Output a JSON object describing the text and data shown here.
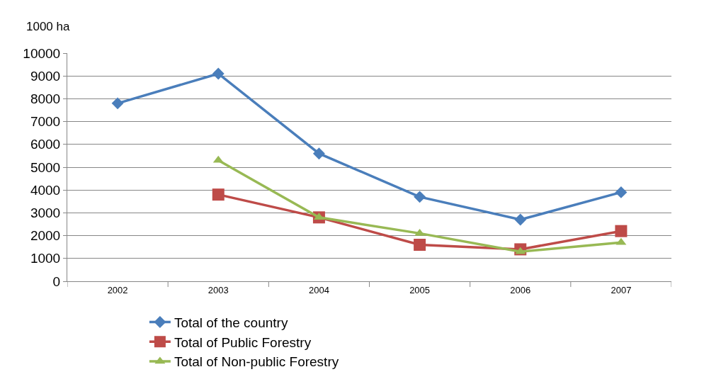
{
  "chart_data": {
    "type": "line",
    "ylabel": "1000 ha",
    "categories": [
      "2002",
      "2003",
      "2004",
      "2005",
      "2006",
      "2007"
    ],
    "series": [
      {
        "name": "Total of the country",
        "color": "#4a7ebb",
        "marker": "diamond",
        "values": [
          7800,
          9100,
          5600,
          3700,
          2700,
          3900
        ]
      },
      {
        "name": "Total of Public Forestry",
        "color": "#be4b48",
        "marker": "square",
        "values": [
          null,
          3800,
          2800,
          1600,
          1400,
          2200
        ]
      },
      {
        "name": "Total of Non-public Forestry",
        "color": "#98b954",
        "marker": "triangle",
        "values": [
          null,
          5300,
          2800,
          2100,
          1300,
          1700
        ]
      }
    ],
    "ylim": [
      0,
      10000
    ],
    "yticks": [
      0,
      1000,
      2000,
      3000,
      4000,
      5000,
      6000,
      7000,
      8000,
      9000,
      10000
    ],
    "grid": "y",
    "legend": "bottom",
    "line_style": "solid"
  }
}
